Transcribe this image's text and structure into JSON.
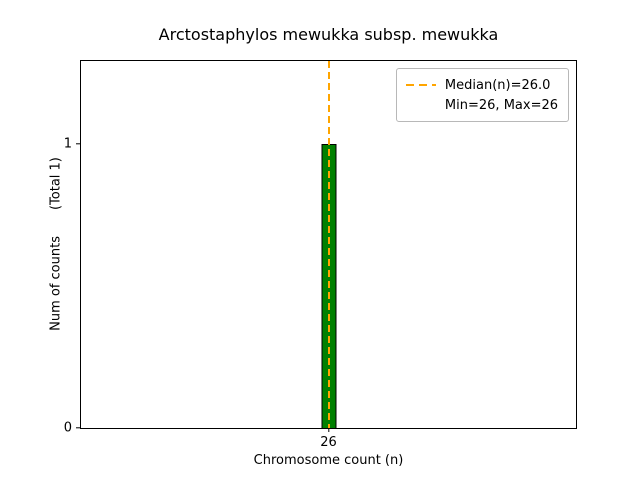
{
  "chart_data": {
    "type": "bar",
    "title": "Arctostaphylos mewukka subsp. mewukka",
    "xlabel": "Chromosome count (n)",
    "ylabel": "Num of counts",
    "ylabel_total": "(Total 1)",
    "categories": [
      26
    ],
    "values": [
      1
    ],
    "xticks": [
      26
    ],
    "yticks": [
      0,
      1
    ],
    "ylim": [
      0,
      1.29
    ],
    "grid": false,
    "bar_color": "#008000",
    "bar_edge_color": "#000000",
    "median": {
      "value": 26.0,
      "line_color": "#FFA500",
      "line_style": "dashed"
    },
    "legend": {
      "position": "upper right",
      "entries": [
        {
          "label": "Median(n)=26.0",
          "marker": "orange-dashed-line"
        },
        {
          "label": "Min=26, Max=26",
          "marker": "none"
        }
      ]
    }
  }
}
